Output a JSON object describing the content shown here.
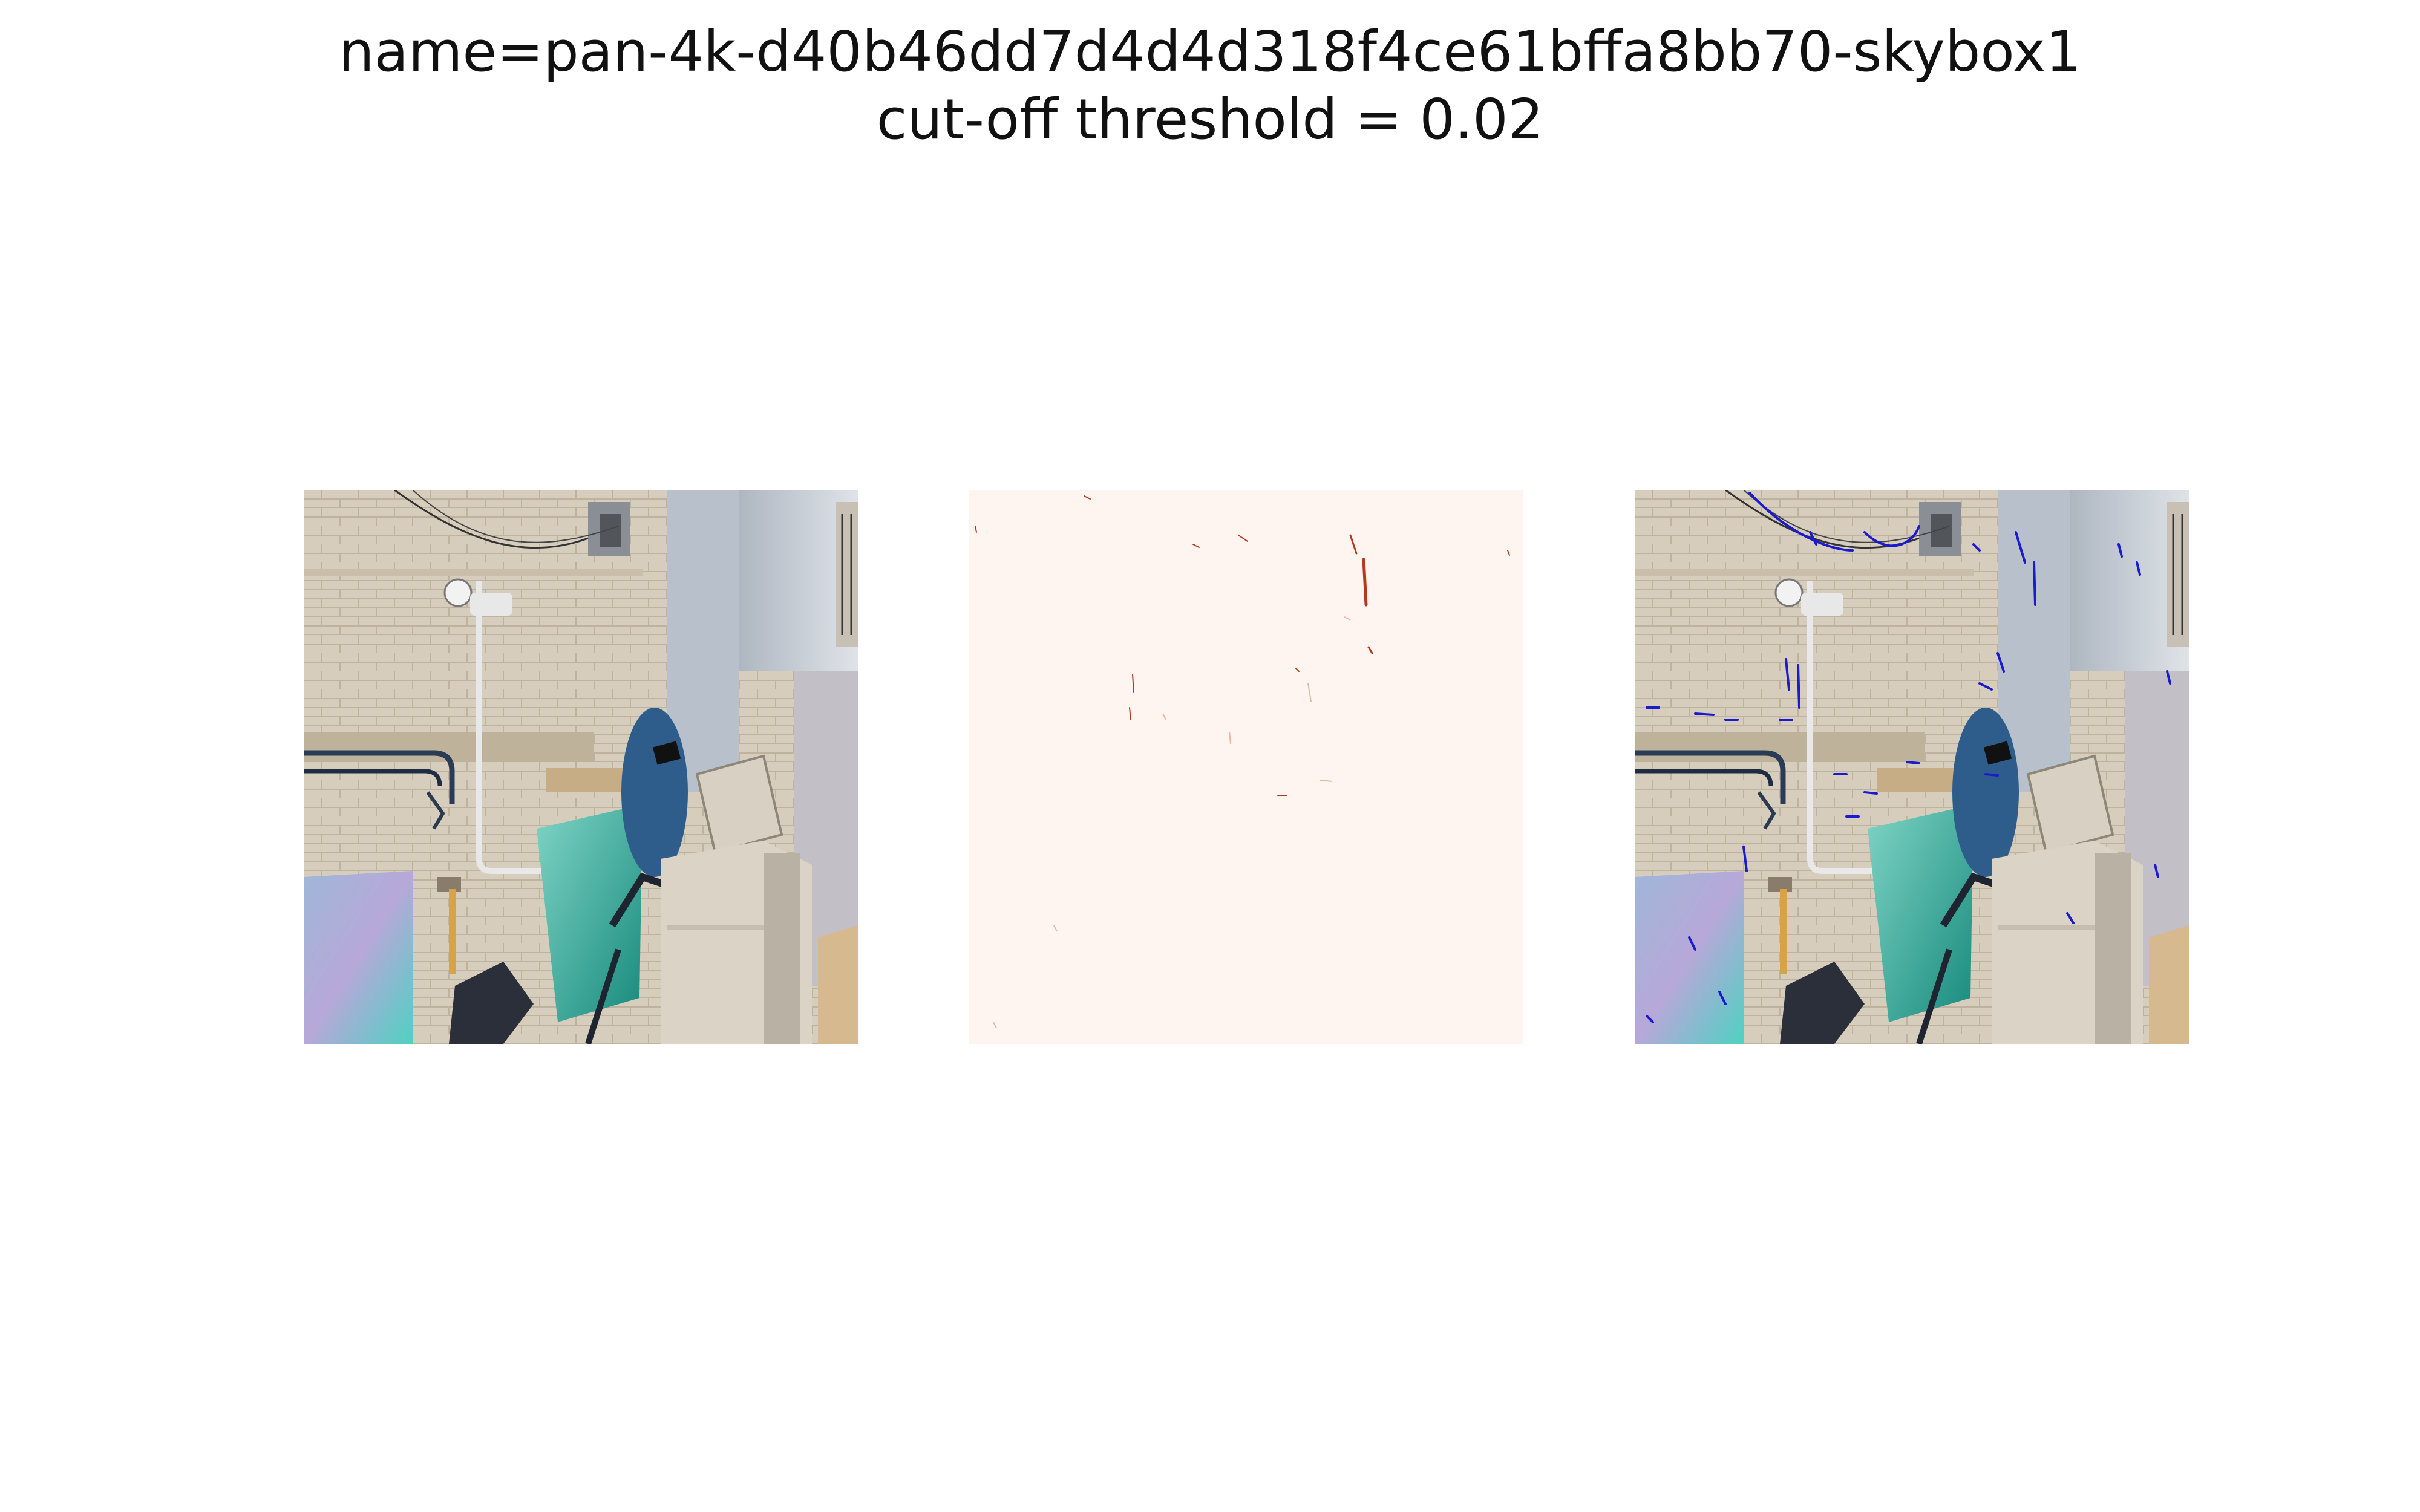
{
  "figure": {
    "title_line1": "name=pan-4k-d40b46dd7d4d4d318f4ce61bffa8bb70-skybox1",
    "title_line2": "cut-off threshold = 0.02"
  },
  "panels": [
    {
      "content": "photo of alley: brick wall, pipes, security light, blue cart, beige machine, green glass panel"
    },
    {
      "content": "sparse dark-red heatmap marks on pale background"
    },
    {
      "content": "photo with blue overlay marks where difference exceeds threshold"
    }
  ],
  "colors": {
    "wall": "#d8cfc0",
    "heatmap_bg": "#fff5f0",
    "heatmap_mark": "#b33a1f",
    "overlay_mark": "#1a1ad0",
    "teal_glass": "#2fa89a",
    "cart_blue": "#2f5f8f",
    "machine": "#d9d2c5"
  }
}
